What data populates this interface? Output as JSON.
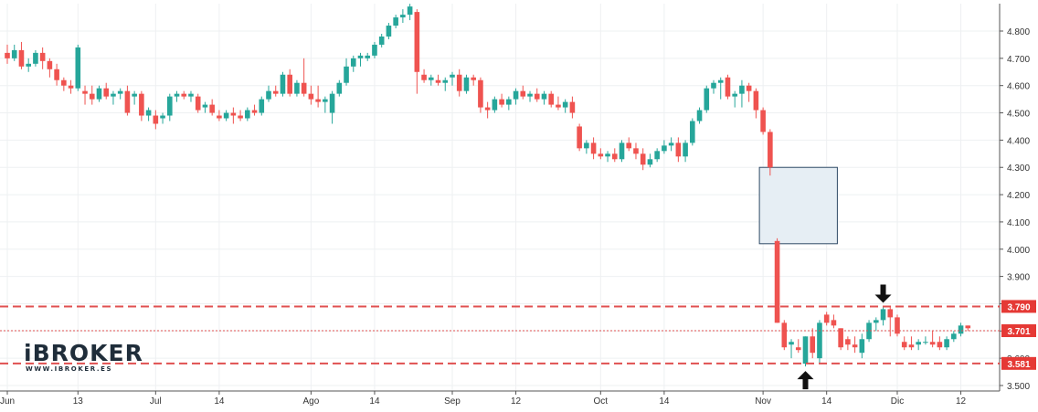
{
  "logo": {
    "name": "iBROKER",
    "url": "WWW.IBROKER.ES"
  },
  "chart_data": {
    "type": "candlestick",
    "ylim": [
      3.5,
      4.9
    ],
    "y_ticks": [
      "3.500",
      "3.600",
      "3.700",
      "3.800",
      "3.900",
      "4.000",
      "4.100",
      "4.200",
      "4.300",
      "4.400",
      "4.500",
      "4.600",
      "4.700",
      "4.800"
    ],
    "x_ticks": [
      {
        "label": "Jun",
        "i": 0
      },
      {
        "label": "13",
        "i": 10
      },
      {
        "label": "Jul",
        "i": 21
      },
      {
        "label": "14",
        "i": 30
      },
      {
        "label": "Ago",
        "i": 43
      },
      {
        "label": "14",
        "i": 52
      },
      {
        "label": "Sep",
        "i": 63
      },
      {
        "label": "12",
        "i": 72
      },
      {
        "label": "Oct",
        "i": 84
      },
      {
        "label": "14",
        "i": 93
      },
      {
        "label": "Nov",
        "i": 107
      },
      {
        "label": "14",
        "i": 116
      },
      {
        "label": "Dic",
        "i": 126
      },
      {
        "label": "12",
        "i": 135
      }
    ],
    "up_color": "#26a69a",
    "down_color": "#ef5350",
    "candles": [
      [
        4.72,
        4.75,
        4.68,
        4.7
      ],
      [
        4.7,
        4.75,
        4.69,
        4.73
      ],
      [
        4.73,
        4.76,
        4.66,
        4.67
      ],
      [
        4.67,
        4.7,
        4.65,
        4.68
      ],
      [
        4.68,
        4.73,
        4.67,
        4.72
      ],
      [
        4.72,
        4.74,
        4.66,
        4.69
      ],
      [
        4.69,
        4.7,
        4.63,
        4.66
      ],
      [
        4.66,
        4.68,
        4.6,
        4.62
      ],
      [
        4.62,
        4.63,
        4.58,
        4.6
      ],
      [
        4.6,
        4.62,
        4.57,
        4.59
      ],
      [
        4.59,
        4.75,
        4.58,
        4.74
      ],
      [
        4.58,
        4.6,
        4.53,
        4.57
      ],
      [
        4.57,
        4.6,
        4.53,
        4.55
      ],
      [
        4.55,
        4.6,
        4.54,
        4.59
      ],
      [
        4.59,
        4.61,
        4.55,
        4.56
      ],
      [
        4.56,
        4.58,
        4.53,
        4.57
      ],
      [
        4.57,
        4.59,
        4.55,
        4.58
      ],
      [
        4.58,
        4.6,
        4.49,
        4.5
      ],
      [
        4.56,
        4.58,
        4.53,
        4.57
      ],
      [
        4.57,
        4.58,
        4.47,
        4.49
      ],
      [
        4.49,
        4.52,
        4.47,
        4.51
      ],
      [
        4.49,
        4.51,
        4.44,
        4.46
      ],
      [
        4.48,
        4.5,
        4.46,
        4.49
      ],
      [
        4.49,
        4.57,
        4.47,
        4.56
      ],
      [
        4.56,
        4.58,
        4.54,
        4.57
      ],
      [
        4.57,
        4.58,
        4.55,
        4.56
      ],
      [
        4.56,
        4.58,
        4.54,
        4.57
      ],
      [
        4.56,
        4.57,
        4.5,
        4.51
      ],
      [
        4.52,
        4.54,
        4.5,
        4.53
      ],
      [
        4.53,
        4.55,
        4.49,
        4.5
      ],
      [
        4.49,
        4.51,
        4.47,
        4.48
      ],
      [
        4.48,
        4.51,
        4.47,
        4.5
      ],
      [
        4.5,
        4.52,
        4.46,
        4.49
      ],
      [
        4.49,
        4.51,
        4.47,
        4.48
      ],
      [
        4.48,
        4.52,
        4.47,
        4.51
      ],
      [
        4.51,
        4.53,
        4.49,
        4.5
      ],
      [
        4.5,
        4.56,
        4.49,
        4.55
      ],
      [
        4.55,
        4.6,
        4.54,
        4.58
      ],
      [
        4.58,
        4.6,
        4.56,
        4.57
      ],
      [
        4.57,
        4.65,
        4.56,
        4.64
      ],
      [
        4.64,
        4.66,
        4.56,
        4.57
      ],
      [
        4.57,
        4.62,
        4.56,
        4.61
      ],
      [
        4.61,
        4.7,
        4.56,
        4.57
      ],
      [
        4.57,
        4.6,
        4.53,
        4.55
      ],
      [
        4.55,
        4.6,
        4.52,
        4.54
      ],
      [
        4.54,
        4.56,
        4.5,
        4.55
      ],
      [
        4.5,
        4.58,
        4.46,
        4.57
      ],
      [
        4.57,
        4.62,
        4.56,
        4.61
      ],
      [
        4.61,
        4.7,
        4.6,
        4.67
      ],
      [
        4.67,
        4.71,
        4.65,
        4.7
      ],
      [
        4.7,
        4.72,
        4.67,
        4.71
      ],
      [
        4.7,
        4.72,
        4.69,
        4.71
      ],
      [
        4.71,
        4.76,
        4.7,
        4.75
      ],
      [
        4.75,
        4.79,
        4.74,
        4.78
      ],
      [
        4.78,
        4.83,
        4.77,
        4.82
      ],
      [
        4.82,
        4.86,
        4.81,
        4.85
      ],
      [
        4.85,
        4.88,
        4.83,
        4.86
      ],
      [
        4.86,
        4.9,
        4.84,
        4.89
      ],
      [
        4.87,
        4.88,
        4.57,
        4.65
      ],
      [
        4.64,
        4.66,
        4.61,
        4.62
      ],
      [
        4.62,
        4.64,
        4.6,
        4.63
      ],
      [
        4.62,
        4.64,
        4.6,
        4.61
      ],
      [
        4.61,
        4.63,
        4.58,
        4.62
      ],
      [
        4.63,
        4.65,
        4.6,
        4.64
      ],
      [
        4.64,
        4.66,
        4.56,
        4.58
      ],
      [
        4.58,
        4.64,
        4.57,
        4.63
      ],
      [
        4.63,
        4.64,
        4.6,
        4.62
      ],
      [
        4.62,
        4.63,
        4.5,
        4.52
      ],
      [
        4.52,
        4.54,
        4.48,
        4.51
      ],
      [
        4.51,
        4.56,
        4.5,
        4.55
      ],
      [
        4.55,
        4.57,
        4.52,
        4.53
      ],
      [
        4.53,
        4.56,
        4.51,
        4.55
      ],
      [
        4.55,
        4.59,
        4.53,
        4.58
      ],
      [
        4.58,
        4.6,
        4.55,
        4.56
      ],
      [
        4.56,
        4.58,
        4.54,
        4.57
      ],
      [
        4.57,
        4.59,
        4.54,
        4.55
      ],
      [
        4.55,
        4.58,
        4.53,
        4.57
      ],
      [
        4.57,
        4.58,
        4.52,
        4.53
      ],
      [
        4.53,
        4.56,
        4.51,
        4.52
      ],
      [
        4.52,
        4.55,
        4.5,
        4.54
      ],
      [
        4.54,
        4.56,
        4.48,
        4.5
      ],
      [
        4.45,
        4.46,
        4.36,
        4.37
      ],
      [
        4.37,
        4.4,
        4.35,
        4.39
      ],
      [
        4.39,
        4.41,
        4.33,
        4.35
      ],
      [
        4.35,
        4.37,
        4.33,
        4.34
      ],
      [
        4.34,
        4.36,
        4.32,
        4.35
      ],
      [
        4.35,
        4.37,
        4.32,
        4.33
      ],
      [
        4.33,
        4.4,
        4.32,
        4.39
      ],
      [
        4.39,
        4.41,
        4.36,
        4.37
      ],
      [
        4.37,
        4.39,
        4.33,
        4.35
      ],
      [
        4.35,
        4.37,
        4.29,
        4.31
      ],
      [
        4.31,
        4.35,
        4.3,
        4.33
      ],
      [
        4.33,
        4.37,
        4.32,
        4.36
      ],
      [
        4.36,
        4.4,
        4.35,
        4.38
      ],
      [
        4.38,
        4.41,
        4.36,
        4.39
      ],
      [
        4.39,
        4.41,
        4.32,
        4.34
      ],
      [
        4.34,
        4.4,
        4.32,
        4.39
      ],
      [
        4.39,
        4.48,
        4.38,
        4.47
      ],
      [
        4.47,
        4.52,
        4.46,
        4.51
      ],
      [
        4.51,
        4.6,
        4.5,
        4.59
      ],
      [
        4.59,
        4.62,
        4.57,
        4.61
      ],
      [
        4.61,
        4.63,
        4.55,
        4.62
      ],
      [
        4.63,
        4.64,
        4.55,
        4.56
      ],
      [
        4.56,
        4.58,
        4.52,
        4.57
      ],
      [
        4.57,
        4.62,
        4.52,
        4.6
      ],
      [
        4.6,
        4.61,
        4.54,
        4.58
      ],
      [
        4.58,
        4.59,
        4.48,
        4.51
      ],
      [
        4.51,
        4.52,
        4.42,
        4.43
      ],
      [
        4.43,
        4.44,
        4.27,
        4.3
      ],
      [
        4.03,
        4.04,
        3.73,
        3.73
      ],
      [
        3.73,
        3.74,
        3.63,
        3.64
      ],
      [
        3.65,
        3.67,
        3.6,
        3.66
      ],
      [
        3.64,
        3.67,
        3.62,
        3.63
      ],
      [
        3.58,
        3.68,
        3.57,
        3.68
      ],
      [
        3.68,
        3.71,
        3.6,
        3.62
      ],
      [
        3.6,
        3.74,
        3.58,
        3.73
      ],
      [
        3.76,
        3.77,
        3.72,
        3.73
      ],
      [
        3.74,
        3.76,
        3.71,
        3.72
      ],
      [
        3.71,
        3.71,
        3.63,
        3.64
      ],
      [
        3.67,
        3.68,
        3.63,
        3.65
      ],
      [
        3.65,
        3.68,
        3.62,
        3.64
      ],
      [
        3.62,
        3.69,
        3.6,
        3.67
      ],
      [
        3.67,
        3.74,
        3.66,
        3.73
      ],
      [
        3.73,
        3.75,
        3.7,
        3.74
      ],
      [
        3.74,
        3.79,
        3.72,
        3.78
      ],
      [
        3.78,
        3.79,
        3.68,
        3.75
      ],
      [
        3.75,
        3.76,
        3.68,
        3.69
      ],
      [
        3.66,
        3.68,
        3.63,
        3.64
      ],
      [
        3.65,
        3.68,
        3.63,
        3.64
      ],
      [
        3.65,
        3.67,
        3.63,
        3.66
      ],
      [
        3.66,
        3.68,
        3.65,
        3.66
      ],
      [
        3.66,
        3.7,
        3.64,
        3.65
      ],
      [
        3.66,
        3.68,
        3.63,
        3.64
      ],
      [
        3.64,
        3.68,
        3.63,
        3.67
      ],
      [
        3.67,
        3.7,
        3.66,
        3.69
      ],
      [
        3.69,
        3.73,
        3.68,
        3.72
      ],
      [
        3.72,
        3.72,
        3.7,
        3.71
      ]
    ],
    "levels": [
      {
        "value": 3.79,
        "label": "3.790",
        "style": "dashed",
        "color": "#e05050"
      },
      {
        "value": 3.701,
        "label": "3.701",
        "style": "dotted",
        "color": "#e05050"
      },
      {
        "value": 3.581,
        "label": "3.581",
        "style": "dashed",
        "color": "#e05050"
      }
    ],
    "gap_box": {
      "i_from": 107,
      "i_to": 117,
      "y_from": 4.02,
      "y_to": 4.3,
      "fill": "#e6eef4",
      "stroke": "#2f4a66"
    },
    "arrows": [
      {
        "i": 124,
        "y": 3.79,
        "direction": "down"
      },
      {
        "i": 113,
        "y": 3.57,
        "direction": "up"
      }
    ]
  }
}
